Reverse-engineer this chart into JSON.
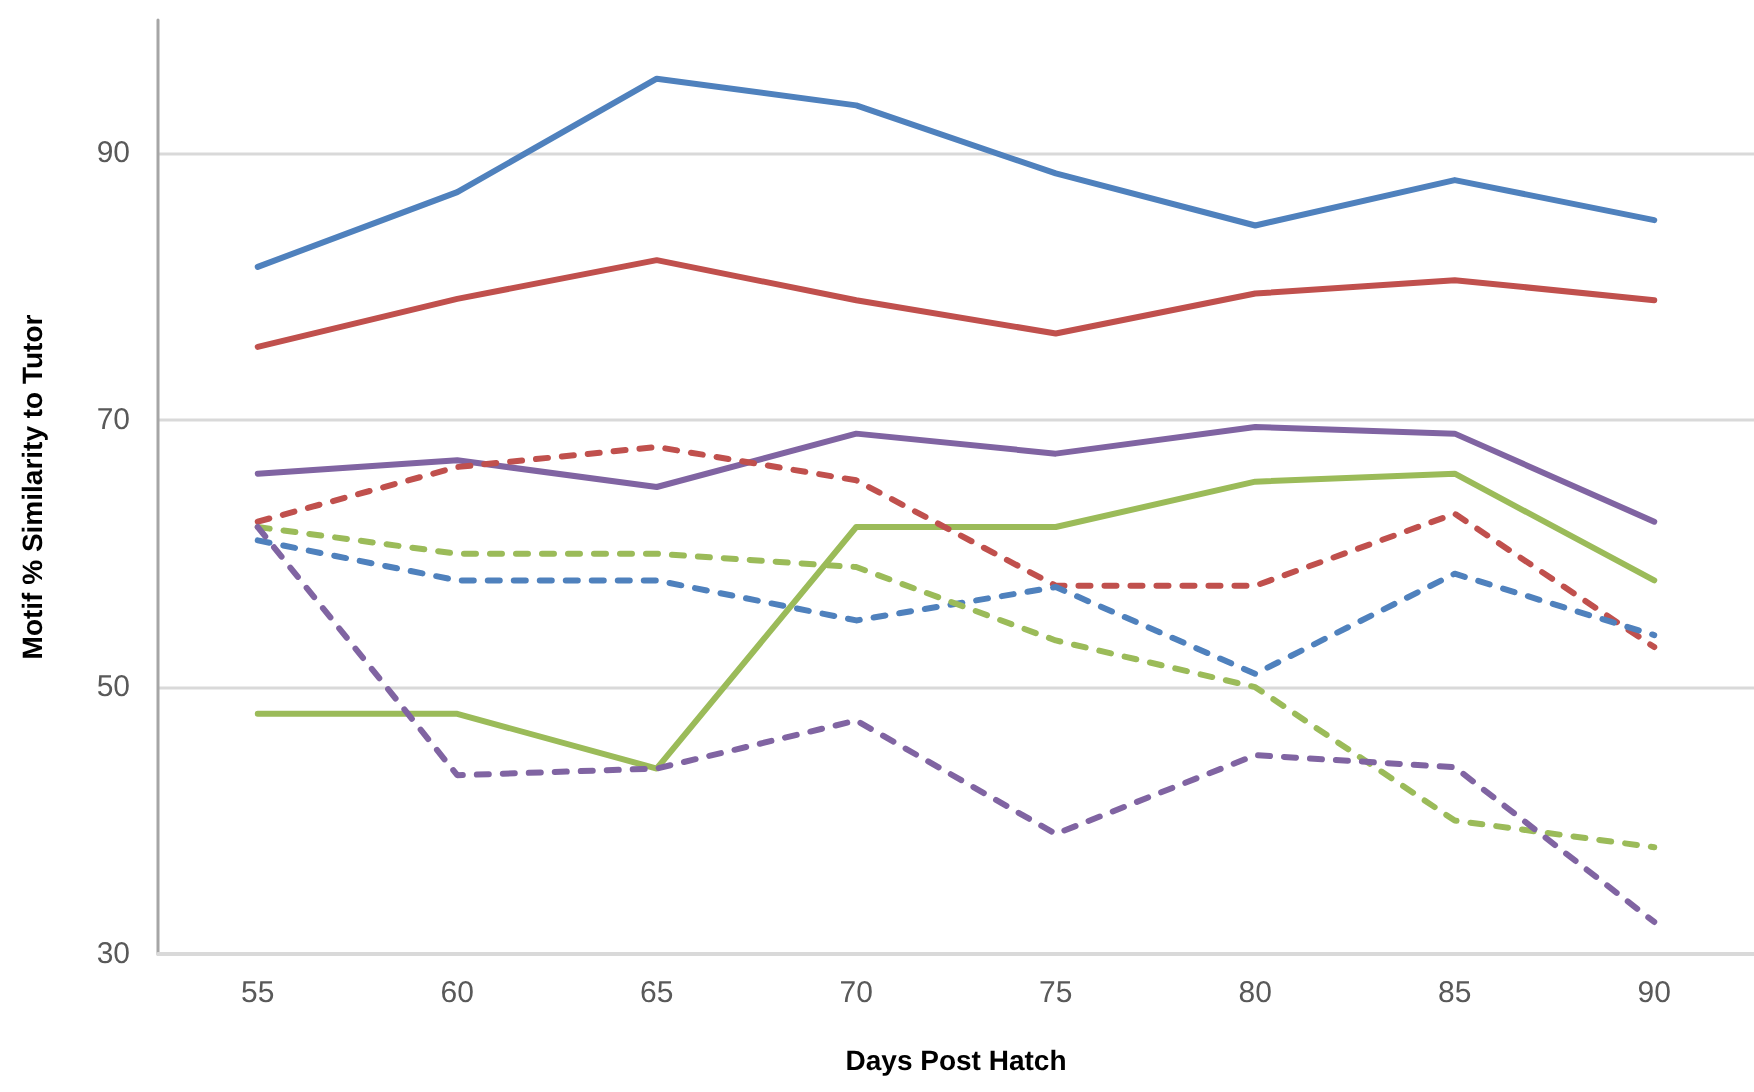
{
  "chart_data": {
    "type": "line",
    "xlabel": "Days Post Hatch",
    "ylabel": "Motif % Similarity to Tutor",
    "categories": [
      "55",
      "60",
      "65",
      "70",
      "75",
      "80",
      "85",
      "90"
    ],
    "ylim": [
      30,
      100
    ],
    "yticks": [
      30,
      50,
      70,
      90
    ],
    "grid": "y",
    "marker": "none",
    "series": [
      {
        "color": "#4f81bd",
        "line_style": "solid",
        "values": [
          81.5,
          87.1,
          95.6,
          93.6,
          88.5,
          84.6,
          88,
          85
        ]
      },
      {
        "color": "#c0504d",
        "line_style": "solid",
        "values": [
          75.5,
          79.1,
          82,
          79,
          76.5,
          79.5,
          80.5,
          79
        ]
      },
      {
        "color": "#8064a2",
        "line_style": "solid",
        "values": [
          66,
          67,
          65,
          69,
          67.5,
          69.5,
          69,
          62.4
        ]
      },
      {
        "color": "#9bbb59",
        "line_style": "solid",
        "values": [
          48,
          48,
          43.9,
          62,
          62,
          65.4,
          66,
          58
        ]
      },
      {
        "color": "#c0504d",
        "line_style": "dashed",
        "values": [
          62.4,
          66.5,
          68,
          65.5,
          57.6,
          57.6,
          63,
          53
        ]
      },
      {
        "color": "#4f81bd",
        "line_style": "dashed",
        "values": [
          61,
          58,
          58,
          55,
          57.5,
          51,
          58.5,
          53.9
        ]
      },
      {
        "color": "#9bbb59",
        "line_style": "dashed",
        "values": [
          62,
          60,
          60,
          59,
          53.5,
          50,
          40,
          38
        ]
      },
      {
        "color": "#8064a2",
        "line_style": "dashed",
        "values": [
          62,
          43.4,
          43.9,
          47.5,
          39,
          44.9,
          44,
          32.4
        ]
      }
    ]
  }
}
